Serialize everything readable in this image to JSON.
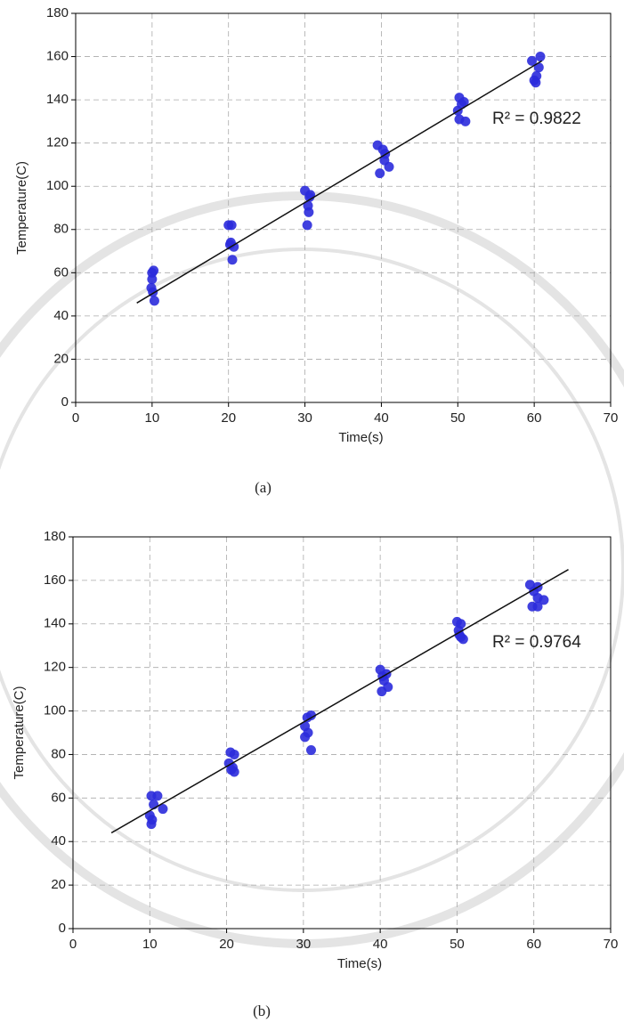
{
  "chart_data": [
    {
      "type": "scatter",
      "xlabel": "Time(s)",
      "ylabel": "Temperature(C)",
      "caption": "(a)",
      "annotation": "R² = 0.9822",
      "x": [
        10,
        10.2,
        10,
        9.9,
        10.1,
        10.3,
        20,
        20.4,
        20.3,
        20.7,
        20.5,
        20.2,
        30,
        30.7,
        30.4,
        30.5,
        30.3,
        30.6,
        39.5,
        40.2,
        40.4,
        41,
        39.8,
        40.5,
        50.2,
        50.8,
        50,
        50.2,
        51,
        50.5,
        59.7,
        60.8,
        60.3,
        60,
        60.6,
        60.2
      ],
      "y": [
        60,
        61,
        57,
        53,
        51,
        47,
        82,
        82,
        74,
        72,
        66,
        73,
        98,
        96,
        91,
        88,
        82,
        95,
        119,
        117,
        112,
        109,
        106,
        115,
        141,
        139,
        135,
        131,
        130,
        138,
        158,
        160,
        151,
        149,
        155,
        148
      ],
      "color": "#2b2bdc",
      "trendline": {
        "x": [
          8,
          61
        ],
        "y": [
          46,
          158
        ],
        "color": "#111111"
      },
      "xlim": [
        0,
        70
      ],
      "ylim": [
        0,
        180
      ],
      "xticks": [
        0,
        10,
        20,
        30,
        40,
        50,
        60,
        70
      ],
      "yticks": [
        0,
        20,
        40,
        60,
        80,
        100,
        120,
        140,
        160,
        180
      ],
      "grid": true
    },
    {
      "type": "scatter",
      "xlabel": "Time(s)",
      "ylabel": "Temperature(C)",
      "caption": "(b)",
      "annotation": "R² = 0.9764",
      "x": [
        10.2,
        11,
        10.5,
        10,
        10.3,
        10.2,
        11.7,
        20.5,
        21,
        20.3,
        20.8,
        21,
        20.6,
        30.5,
        31,
        30.2,
        30.6,
        30.2,
        31,
        40,
        40.8,
        40.5,
        41,
        40.2,
        40.3,
        50,
        50.5,
        50.2,
        50.5,
        50.8,
        50.3,
        59.5,
        60.5,
        60,
        60.5,
        61.3,
        59.8,
        60.5
      ],
      "y": [
        61,
        61,
        57,
        52,
        50,
        48,
        55,
        81,
        80,
        76,
        74,
        72,
        73,
        97,
        98,
        93,
        90,
        88,
        82,
        119,
        117,
        114,
        111,
        109,
        116,
        141,
        140,
        137,
        134,
        133,
        135,
        158,
        157,
        155,
        152,
        151,
        148,
        148
      ],
      "color": "#2b2bdc",
      "trendline": {
        "x": [
          5,
          64.5
        ],
        "y": [
          44,
          165
        ],
        "color": "#111111"
      },
      "xlim": [
        0,
        70
      ],
      "ylim": [
        0,
        180
      ],
      "xticks": [
        0,
        10,
        20,
        30,
        40,
        50,
        60,
        70
      ],
      "yticks": [
        0,
        20,
        40,
        60,
        80,
        100,
        120,
        140,
        160,
        180
      ],
      "grid": true
    }
  ]
}
